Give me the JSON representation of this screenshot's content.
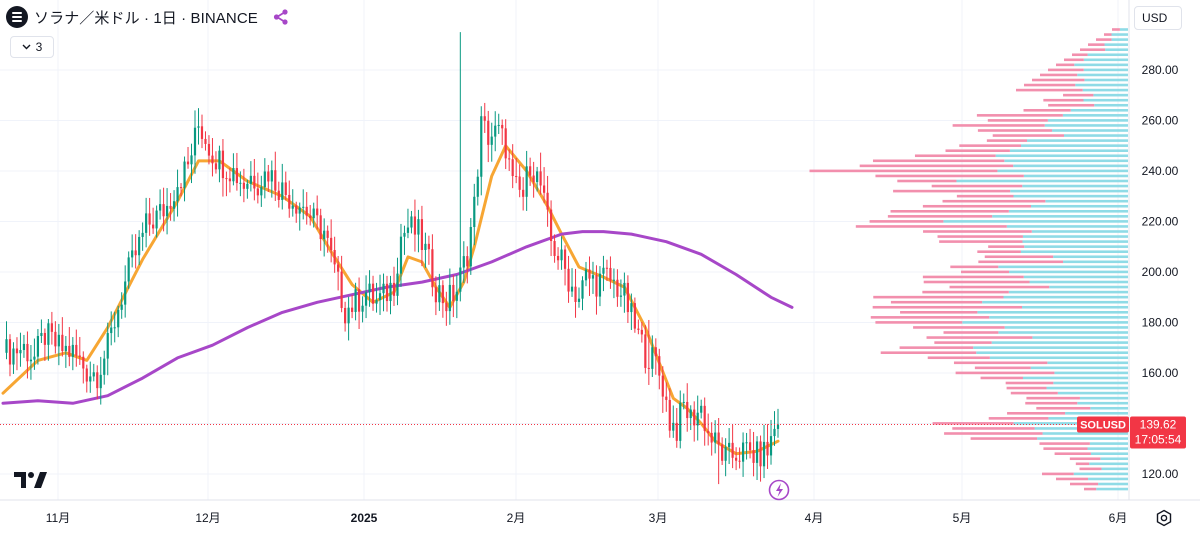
{
  "header": {
    "title": "ソラナ／米ドル · 1日 · BINANCE",
    "symbol_icon": "solana-logo-icon",
    "share_icon": "share-icon"
  },
  "indicator_toggle": {
    "count": "3",
    "icon": "chevron-down-icon"
  },
  "currency": {
    "label": "USD"
  },
  "price_label": {
    "symbol": "SOLUSD",
    "price": "139.62",
    "countdown": "17:05:54",
    "color": "#f23645"
  },
  "colors": {
    "up": "#089981",
    "down": "#f23645",
    "ma_fast": "#f7a633",
    "ma_slow": "#a747c8",
    "volume_profile_up": "#8fdbe6",
    "volume_profile_down": "#f28fad",
    "grid": "#f0f3fa",
    "axis_text": "#131722"
  },
  "icons": {
    "alert": "lightning-alert-icon",
    "logo": "tradingview-logo-icon",
    "settings": "settings-icon"
  },
  "chart_data": {
    "type": "candlestick",
    "title": "ソラナ／米ドル · 1日 · BINANCE",
    "y_ticks": [
      120,
      140,
      160,
      180,
      200,
      220,
      240,
      260,
      280
    ],
    "y_tick_labels": [
      "120.00",
      "",
      "160.00",
      "180.00",
      "200.00",
      "220.00",
      "240.00",
      "260.00",
      "280.00"
    ],
    "ylim": [
      110,
      298
    ],
    "x_tick_labels": [
      "11月",
      "12月",
      "2025",
      "2月",
      "3月",
      "4月",
      "5月",
      "6月"
    ],
    "grid": true,
    "last_price": 139.62,
    "series": [
      {
        "name": "SOLUSD",
        "type": "candlestick",
        "close_path": [
          [
            0,
            168
          ],
          [
            6,
            170
          ],
          [
            9,
            166
          ],
          [
            12,
            175
          ],
          [
            16,
            170
          ],
          [
            20,
            168
          ],
          [
            24,
            161
          ],
          [
            27,
            160
          ],
          [
            30,
            170
          ],
          [
            33,
            186
          ],
          [
            36,
            200
          ],
          [
            38,
            207
          ],
          [
            41,
            218
          ],
          [
            44,
            222
          ],
          [
            47,
            226
          ],
          [
            50,
            236
          ],
          [
            53,
            242
          ],
          [
            56,
            258
          ],
          [
            57,
            256
          ],
          [
            60,
            247
          ],
          [
            63,
            243
          ],
          [
            66,
            240
          ],
          [
            69,
            235
          ],
          [
            71,
            238
          ],
          [
            73,
            236
          ],
          [
            76,
            240
          ],
          [
            79,
            234
          ],
          [
            82,
            230
          ],
          [
            86,
            226
          ],
          [
            89,
            220
          ],
          [
            92,
            216
          ],
          [
            95,
            200
          ],
          [
            98,
            185
          ],
          [
            101,
            188
          ],
          [
            104,
            192
          ],
          [
            107,
            188
          ],
          [
            109,
            190
          ],
          [
            112,
            196
          ],
          [
            114,
            214
          ],
          [
            116,
            218
          ],
          [
            119,
            215
          ],
          [
            121,
            208
          ],
          [
            124,
            194
          ],
          [
            127,
            188
          ],
          [
            130,
            193
          ],
          [
            133,
            208
          ],
          [
            135,
            226
          ],
          [
            137,
            258
          ],
          [
            139,
            254
          ],
          [
            142,
            255
          ],
          [
            144,
            250
          ],
          [
            146,
            234
          ],
          [
            149,
            230
          ],
          [
            151,
            244
          ],
          [
            154,
            234
          ],
          [
            157,
            212
          ],
          [
            160,
            204
          ],
          [
            163,
            194
          ],
          [
            165,
            190
          ],
          [
            167,
            198
          ],
          [
            170,
            196
          ],
          [
            173,
            198
          ],
          [
            176,
            194
          ],
          [
            178,
            190
          ],
          [
            181,
            178
          ],
          [
            184,
            168
          ],
          [
            187,
            164
          ],
          [
            189,
            155
          ],
          [
            191,
            141
          ],
          [
            193,
            138
          ],
          [
            195,
            147
          ],
          [
            197,
            142
          ],
          [
            200,
            146
          ],
          [
            202,
            136
          ],
          [
            205,
            130
          ],
          [
            207,
            126
          ],
          [
            210,
            128
          ],
          [
            213,
            129
          ],
          [
            216,
            127
          ],
          [
            219,
            129
          ],
          [
            221,
            138
          ],
          [
            222,
            140
          ]
        ],
        "x_unit": "days since 2024-10-09",
        "open_high_low": "estimated from candle wicks"
      }
    ],
    "moving_averages": [
      {
        "name": "",
        "color": "#f7a633",
        "points": [
          [
            0,
            152
          ],
          [
            10,
            165
          ],
          [
            18,
            168
          ],
          [
            24,
            165
          ],
          [
            30,
            178
          ],
          [
            40,
            205
          ],
          [
            50,
            228
          ],
          [
            56,
            244
          ],
          [
            62,
            244
          ],
          [
            70,
            236
          ],
          [
            80,
            230
          ],
          [
            88,
            222
          ],
          [
            94,
            208
          ],
          [
            100,
            195
          ],
          [
            106,
            188
          ],
          [
            112,
            192
          ],
          [
            116,
            206
          ],
          [
            120,
            204
          ],
          [
            124,
            194
          ],
          [
            128,
            186
          ],
          [
            132,
            196
          ],
          [
            135,
            210
          ],
          [
            140,
            238
          ],
          [
            144,
            250
          ],
          [
            150,
            240
          ],
          [
            156,
            226
          ],
          [
            160,
            215
          ],
          [
            165,
            202
          ],
          [
            172,
            198
          ],
          [
            178,
            194
          ],
          [
            184,
            178
          ],
          [
            188,
            164
          ],
          [
            192,
            150
          ],
          [
            196,
            146
          ],
          [
            200,
            140
          ],
          [
            204,
            133
          ],
          [
            210,
            128
          ],
          [
            216,
            129
          ],
          [
            222,
            133
          ]
        ]
      },
      {
        "name": "",
        "color": "#a747c8",
        "points": [
          [
            0,
            148
          ],
          [
            10,
            149
          ],
          [
            20,
            148
          ],
          [
            30,
            151
          ],
          [
            40,
            158
          ],
          [
            50,
            166
          ],
          [
            60,
            171
          ],
          [
            70,
            178
          ],
          [
            80,
            184
          ],
          [
            90,
            188
          ],
          [
            100,
            191
          ],
          [
            110,
            194
          ],
          [
            120,
            196
          ],
          [
            130,
            199
          ],
          [
            140,
            204
          ],
          [
            150,
            210
          ],
          [
            160,
            215
          ],
          [
            166,
            216
          ],
          [
            172,
            216
          ],
          [
            180,
            215
          ],
          [
            190,
            212
          ],
          [
            200,
            207
          ],
          [
            210,
            199
          ],
          [
            220,
            190
          ],
          [
            226,
            186
          ]
        ]
      }
    ],
    "volume_profile": "horizontal volume-by-price histogram (up volume / down volume)"
  }
}
